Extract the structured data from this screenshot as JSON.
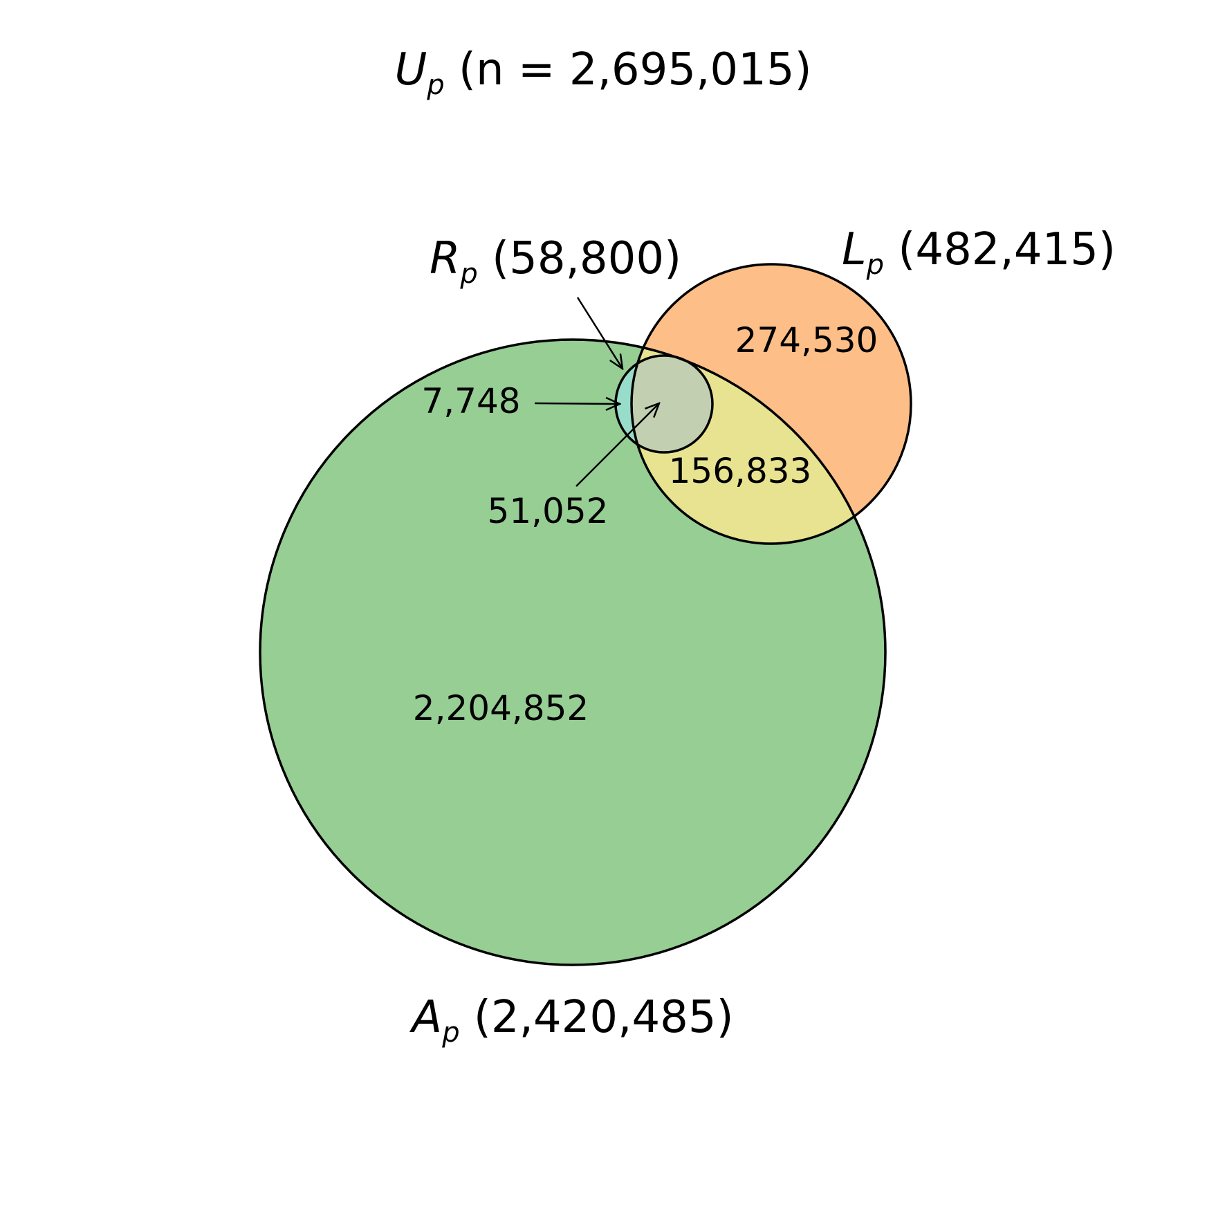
{
  "title": {
    "symbol": "U",
    "subscript": "p",
    "text": " (n = 2,695,015)"
  },
  "sets": {
    "A": {
      "symbol": "A",
      "subscript": "p",
      "count_text": " (2,420,485)",
      "color": "#2ca02c"
    },
    "L": {
      "symbol": "L",
      "subscript": "p",
      "count_text": " (482,415)",
      "color": "#ff7f0e"
    },
    "R": {
      "symbol": "R",
      "subscript": "p",
      "count_text": " (58,800)",
      "color": "#1f9ea8"
    }
  },
  "regions": {
    "A_only": "2,204,852",
    "L_only": "274,530",
    "A_and_L": "156,833",
    "R_and_A_only": "7,748",
    "R_and_A_and_L": "51,052"
  },
  "colors": {
    "A_only": "#96ce94",
    "L_only": "#fdbf87",
    "A_and_L": "#e7e391",
    "R_and_A": "#98ddca",
    "R_and_A_and_L": "#c3cfb1",
    "outline": "#000000"
  }
}
